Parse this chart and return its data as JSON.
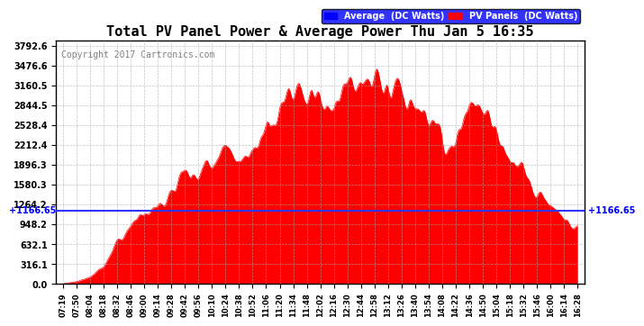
{
  "title": "Total PV Panel Power & Average Power Thu Jan 5 16:35",
  "copyright": "Copyright 2017 Cartronics.com",
  "legend_avg": "Average  (DC Watts)",
  "legend_pv": "PV Panels  (DC Watts)",
  "avg_value": 1166.65,
  "ymax": 3792.6,
  "ymin": 0.0,
  "yticks": [
    0.0,
    316.1,
    632.1,
    948.2,
    1264.2,
    1580.3,
    1896.3,
    2212.4,
    2528.4,
    2844.5,
    3160.5,
    3476.6,
    3792.6
  ],
  "bg_color": "#ffffff",
  "plot_bg": "#ffffff",
  "fill_color": "#ff0000",
  "line_color": "#0000ff",
  "avg_line_color": "#3333ff",
  "grid_color": "#aaaaaa",
  "xtick_start": "07:19",
  "xtick_end": "16:28",
  "xtick_labels": [
    "07:19",
    "07:50",
    "08:04",
    "08:18",
    "08:32",
    "08:46",
    "09:00",
    "09:14",
    "09:28",
    "09:42",
    "09:56",
    "10:10",
    "10:24",
    "10:38",
    "10:52",
    "11:06",
    "11:20",
    "11:34",
    "11:48",
    "12:02",
    "12:16",
    "12:30",
    "12:44",
    "12:58",
    "13:12",
    "13:26",
    "13:40",
    "13:54",
    "14:08",
    "14:22",
    "14:36",
    "14:50",
    "15:04",
    "15:18",
    "15:32",
    "15:46",
    "16:00",
    "16:14",
    "16:28"
  ]
}
